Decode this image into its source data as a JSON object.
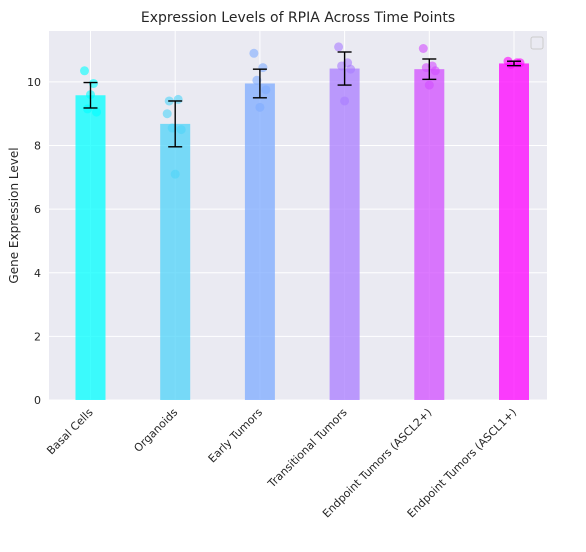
{
  "chart_data": {
    "type": "bar",
    "title": "Expression Levels of RPIA Across Time Points",
    "xlabel": "",
    "ylabel": "Gene Expression Level",
    "ylim": [
      0,
      11.6
    ],
    "yticks": [
      0,
      2,
      4,
      6,
      8,
      10
    ],
    "grid": true,
    "legend": "top-right (empty)",
    "categories": [
      "Basal Cells",
      "Organoids",
      "Early Tumors",
      "Transitional Tumors",
      "Endpoint Tumors (ASCL2+)",
      "Endpoint Tumors (ASCL1+)"
    ],
    "values": [
      9.58,
      8.68,
      9.95,
      10.42,
      10.4,
      10.58
    ],
    "error": [
      0.4,
      0.72,
      0.45,
      0.52,
      0.32,
      0.07
    ],
    "bar_colors": [
      "#00ffff",
      "#4fd3f8",
      "#7eabff",
      "#a97cff",
      "#d24dff",
      "#ff00ff"
    ],
    "points": [
      [
        10.35,
        9.95,
        9.15,
        9.05,
        9.6
      ],
      [
        9.4,
        9.45,
        8.55,
        8.5,
        7.1,
        9.0
      ],
      [
        10.9,
        10.45,
        10.05,
        9.75,
        9.2
      ],
      [
        11.1,
        10.6,
        10.5,
        10.4,
        9.4
      ],
      [
        11.05,
        10.5,
        10.45,
        10.35,
        9.9
      ],
      [
        10.65,
        10.6,
        10.55,
        10.6
      ]
    ]
  }
}
